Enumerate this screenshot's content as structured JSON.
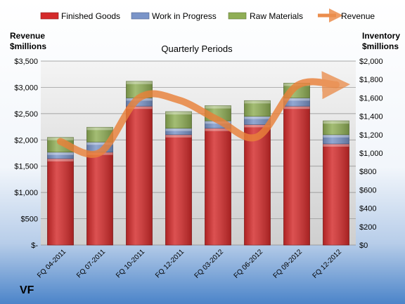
{
  "chart_data": {
    "type": "bar",
    "subtype": "stacked bar with line overlay",
    "title": "Quarterly Periods",
    "company": "VF",
    "left_axis_label": [
      "Revenue",
      "$millions"
    ],
    "right_axis_label": [
      "Inventory",
      "$millions"
    ],
    "categories": [
      "FQ 04-2011",
      "FQ 07-2011",
      "FQ 10-2011",
      "FQ 12-2011",
      "FQ 03-2012",
      "FQ 06-2012",
      "FQ 09-2012",
      "FQ 12-2012"
    ],
    "left_axis": {
      "min": 0,
      "max": 3500,
      "step": 500,
      "tick_labels": [
        "$-",
        "$500",
        "$1,000",
        "$1,500",
        "$2,000",
        "$2,500",
        "$3,000",
        "$3,500"
      ]
    },
    "right_axis": {
      "min": 0,
      "max": 2000,
      "step": 200,
      "tick_labels": [
        "$0",
        "$200",
        "$400",
        "$600",
        "$800",
        "$1,000",
        "$1,200",
        "$1,400",
        "$1,600",
        "$1,800",
        "$2,000"
      ]
    },
    "series": [
      {
        "name": "Finished Goods",
        "axis": "right",
        "color": "#d42b2b",
        "values": [
          940,
          1010,
          1510,
          1200,
          1270,
          1310,
          1510,
          1100
        ]
      },
      {
        "name": "Work in Progress",
        "axis": "right",
        "color": "#7a94c8",
        "values": [
          70,
          110,
          90,
          70,
          80,
          90,
          90,
          100
        ]
      },
      {
        "name": "Raw Materials",
        "axis": "right",
        "color": "#8fae55",
        "values": [
          160,
          160,
          180,
          180,
          165,
          170,
          160,
          150
        ]
      },
      {
        "name": "Revenue",
        "axis": "left",
        "type": "line",
        "color": "#e9813a",
        "values": [
          1970,
          1760,
          2800,
          2760,
          2380,
          2060,
          3030,
          3050
        ]
      }
    ],
    "legend": {
      "position": "top"
    },
    "grid": true
  }
}
